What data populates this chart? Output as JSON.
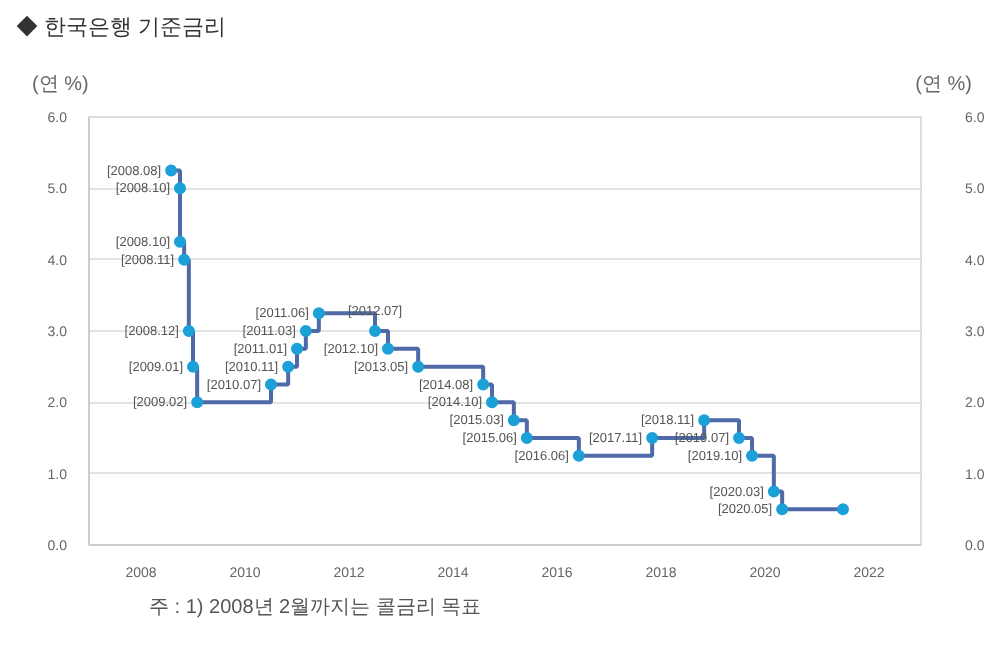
{
  "chart_data": {
    "type": "step",
    "title": "◆ 한국은행 기준금리",
    "ylabel": "(연 %)",
    "y2label": "(연 %)",
    "x": [
      2008.58,
      2008.75,
      2008.75,
      2008.83,
      2008.92,
      2009.0,
      2009.08,
      2010.5,
      2010.83,
      2011.0,
      2011.17,
      2011.42,
      2012.5,
      2012.75,
      2013.33,
      2014.58,
      2014.75,
      2015.17,
      2015.42,
      2016.42,
      2017.83,
      2018.83,
      2019.5,
      2019.75,
      2020.17,
      2020.33,
      2021.5
    ],
    "series": [
      {
        "color": "#4f6aa8",
        "values": [
          5.25,
          5.0,
          4.25,
          4.0,
          3.0,
          2.5,
          2.0,
          2.25,
          2.5,
          2.75,
          3.0,
          3.25,
          3.0,
          2.75,
          2.5,
          2.25,
          2.0,
          1.75,
          1.5,
          1.25,
          1.5,
          1.75,
          1.5,
          1.25,
          0.75,
          0.5,
          0.5
        ]
      }
    ],
    "xlim": [
      2007,
      2023
    ],
    "xticks": [
      2008,
      2010,
      2012,
      2014,
      2016,
      2018,
      2020,
      2022
    ],
    "ylim": [
      0,
      6
    ],
    "yticks": [
      {
        "value": 0,
        "label": "0.0"
      },
      {
        "value": 1,
        "label": "1.0"
      },
      {
        "value": 2,
        "label": "2.0"
      },
      {
        "value": 3,
        "label": "3.0"
      },
      {
        "value": 4,
        "label": "4.0"
      },
      {
        "value": 5,
        "label": "5.0"
      },
      {
        "value": 6,
        "label": "6.0"
      }
    ],
    "y2lim": [
      0,
      6
    ],
    "y2ticks": [
      {
        "value": 0,
        "label": "0.0"
      },
      {
        "value": 1,
        "label": "1.0"
      },
      {
        "value": 2,
        "label": "2.0"
      },
      {
        "value": 3,
        "label": "3.0"
      },
      {
        "value": 4,
        "label": "4.0"
      },
      {
        "value": 5,
        "label": "5.0"
      },
      {
        "value": 6,
        "label": "6.0"
      }
    ],
    "grid": "y",
    "marker": "circle",
    "annotations": [
      {
        "text": "[2008.08]",
        "x": 2008.58,
        "y": 5.25
      },
      {
        "text": "[2008.10]",
        "x": 2008.75,
        "y": 5.0
      },
      {
        "text": "[2008.10]",
        "x": 2008.75,
        "y": 4.25
      },
      {
        "text": "[2008.11]",
        "x": 2008.83,
        "y": 4.0
      },
      {
        "text": "[2008.12]",
        "x": 2008.92,
        "y": 3.0
      },
      {
        "text": "[2009.01]",
        "x": 2009.0,
        "y": 2.5
      },
      {
        "text": "[2009.02]",
        "x": 2009.08,
        "y": 2.0
      },
      {
        "text": "[2010.07]",
        "x": 2010.5,
        "y": 2.25
      },
      {
        "text": "[2010.11]",
        "x": 2010.83,
        "y": 2.5
      },
      {
        "text": "[2011.01]",
        "x": 2011.0,
        "y": 2.75
      },
      {
        "text": "[2011.03]",
        "x": 2011.17,
        "y": 3.0
      },
      {
        "text": "[2011.06]",
        "x": 2011.42,
        "y": 3.25
      },
      {
        "text": "[2012.07]",
        "x": 2012.5,
        "y": 3.0
      },
      {
        "text": "[2012.10]",
        "x": 2012.75,
        "y": 2.75
      },
      {
        "text": "[2013.05]",
        "x": 2013.33,
        "y": 2.5
      },
      {
        "text": "[2014.08]",
        "x": 2014.58,
        "y": 2.25
      },
      {
        "text": "[2014.10]",
        "x": 2014.75,
        "y": 2.0
      },
      {
        "text": "[2015.03]",
        "x": 2015.17,
        "y": 1.75
      },
      {
        "text": "[2015.06]",
        "x": 2015.42,
        "y": 1.5
      },
      {
        "text": "[2016.06]",
        "x": 2016.42,
        "y": 1.25
      },
      {
        "text": "[2017.11]",
        "x": 2017.83,
        "y": 1.5
      },
      {
        "text": "[2018.11]",
        "x": 2018.83,
        "y": 1.75
      },
      {
        "text": "[2019.07]",
        "x": 2019.5,
        "y": 1.5
      },
      {
        "text": "[2019.10]",
        "x": 2019.75,
        "y": 1.25
      },
      {
        "text": "[2020.03]",
        "x": 2020.17,
        "y": 0.75
      },
      {
        "text": "[2020.05]",
        "x": 2020.33,
        "y": 0.5
      },
      "주 : 1) 2008년 2월까지는 콜금리 목표"
    ]
  }
}
